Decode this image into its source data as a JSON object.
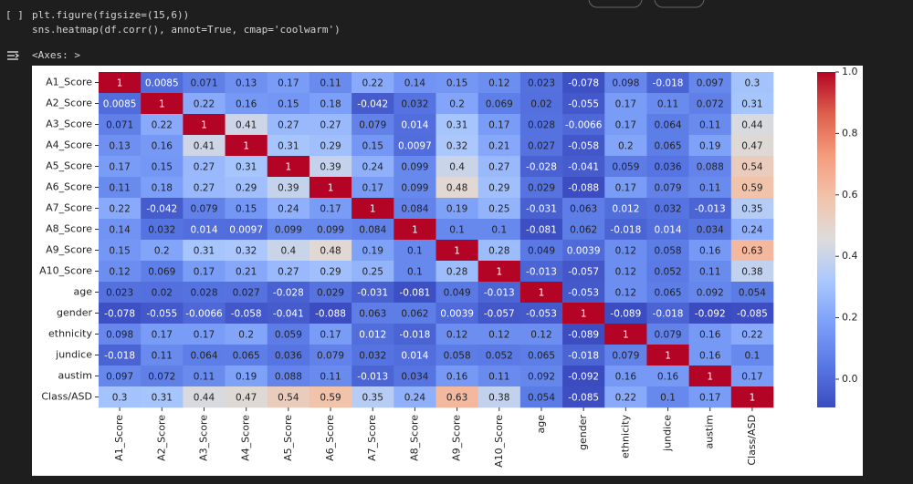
{
  "cell": {
    "bracket": "[ ]",
    "code": [
      "plt.figure(figsize=(15,6))",
      "sns.heatmap(df.corr(), annot=True, cmap='coolwarm')"
    ],
    "output": "<Axes: >"
  },
  "chart_data": {
    "type": "heatmap",
    "cmap": "coolwarm",
    "categories": [
      "A1_Score",
      "A2_Score",
      "A3_Score",
      "A4_Score",
      "A5_Score",
      "A6_Score",
      "A7_Score",
      "A8_Score",
      "A9_Score",
      "A10_Score",
      "age",
      "gender",
      "ethnicity",
      "jundice",
      "austim",
      "Class/ASD"
    ],
    "values": [
      [
        1,
        0.0085,
        0.071,
        0.13,
        0.17,
        0.11,
        0.22,
        0.14,
        0.15,
        0.12,
        0.023,
        -0.078,
        0.098,
        -0.018,
        0.097,
        0.3
      ],
      [
        0.0085,
        1,
        0.22,
        0.16,
        0.15,
        0.18,
        -0.042,
        0.032,
        0.2,
        0.069,
        0.02,
        -0.055,
        0.17,
        0.11,
        0.072,
        0.31
      ],
      [
        0.071,
        0.22,
        1,
        0.41,
        0.27,
        0.27,
        0.079,
        0.014,
        0.31,
        0.17,
        0.028,
        -0.0066,
        0.17,
        0.064,
        0.11,
        0.44
      ],
      [
        0.13,
        0.16,
        0.41,
        1,
        0.31,
        0.29,
        0.15,
        0.0097,
        0.32,
        0.21,
        0.027,
        -0.058,
        0.2,
        0.065,
        0.19,
        0.47
      ],
      [
        0.17,
        0.15,
        0.27,
        0.31,
        1,
        0.39,
        0.24,
        0.099,
        0.4,
        0.27,
        -0.028,
        -0.041,
        0.059,
        0.036,
        0.088,
        0.54
      ],
      [
        0.11,
        0.18,
        0.27,
        0.29,
        0.39,
        1,
        0.17,
        0.099,
        0.48,
        0.29,
        0.029,
        -0.088,
        0.17,
        0.079,
        0.11,
        0.59
      ],
      [
        0.22,
        -0.042,
        0.079,
        0.15,
        0.24,
        0.17,
        1,
        0.084,
        0.19,
        0.25,
        -0.031,
        0.063,
        0.012,
        0.032,
        -0.013,
        0.35
      ],
      [
        0.14,
        0.032,
        0.014,
        0.0097,
        0.099,
        0.099,
        0.084,
        1,
        0.1,
        0.1,
        -0.081,
        0.062,
        -0.018,
        0.014,
        0.034,
        0.24
      ],
      [
        0.15,
        0.2,
        0.31,
        0.32,
        0.4,
        0.48,
        0.19,
        0.1,
        1,
        0.28,
        0.049,
        0.0039,
        0.12,
        0.058,
        0.16,
        0.63
      ],
      [
        0.12,
        0.069,
        0.17,
        0.21,
        0.27,
        0.29,
        0.25,
        0.1,
        0.28,
        1,
        -0.013,
        -0.057,
        0.12,
        0.052,
        0.11,
        0.38
      ],
      [
        0.023,
        0.02,
        0.028,
        0.027,
        -0.028,
        0.029,
        -0.031,
        -0.081,
        0.049,
        -0.013,
        1,
        -0.053,
        0.12,
        0.065,
        0.092,
        0.054
      ],
      [
        -0.078,
        -0.055,
        -0.0066,
        -0.058,
        -0.041,
        -0.088,
        0.063,
        0.062,
        0.0039,
        -0.057,
        -0.053,
        1,
        -0.089,
        -0.018,
        -0.092,
        -0.085
      ],
      [
        0.098,
        0.17,
        0.17,
        0.2,
        0.059,
        0.17,
        0.012,
        -0.018,
        0.12,
        0.12,
        0.12,
        -0.089,
        1,
        0.079,
        0.16,
        0.22
      ],
      [
        -0.018,
        0.11,
        0.064,
        0.065,
        0.036,
        0.079,
        0.032,
        0.014,
        0.058,
        0.052,
        0.065,
        -0.018,
        0.079,
        1,
        0.16,
        0.1
      ],
      [
        0.097,
        0.072,
        0.11,
        0.19,
        0.088,
        0.11,
        -0.013,
        0.034,
        0.16,
        0.11,
        0.092,
        -0.092,
        0.16,
        0.16,
        1,
        0.17
      ],
      [
        0.3,
        0.31,
        0.44,
        0.47,
        0.54,
        0.59,
        0.35,
        0.24,
        0.63,
        0.38,
        0.054,
        -0.085,
        0.22,
        0.1,
        0.17,
        1
      ]
    ],
    "zlim": [
      -0.092,
      1
    ],
    "zticks": [
      {
        "value": 1,
        "label": "1.0"
      },
      0.8,
      0.6,
      0.4,
      0.2,
      {
        "value": 0,
        "label": "0.0"
      }
    ]
  }
}
